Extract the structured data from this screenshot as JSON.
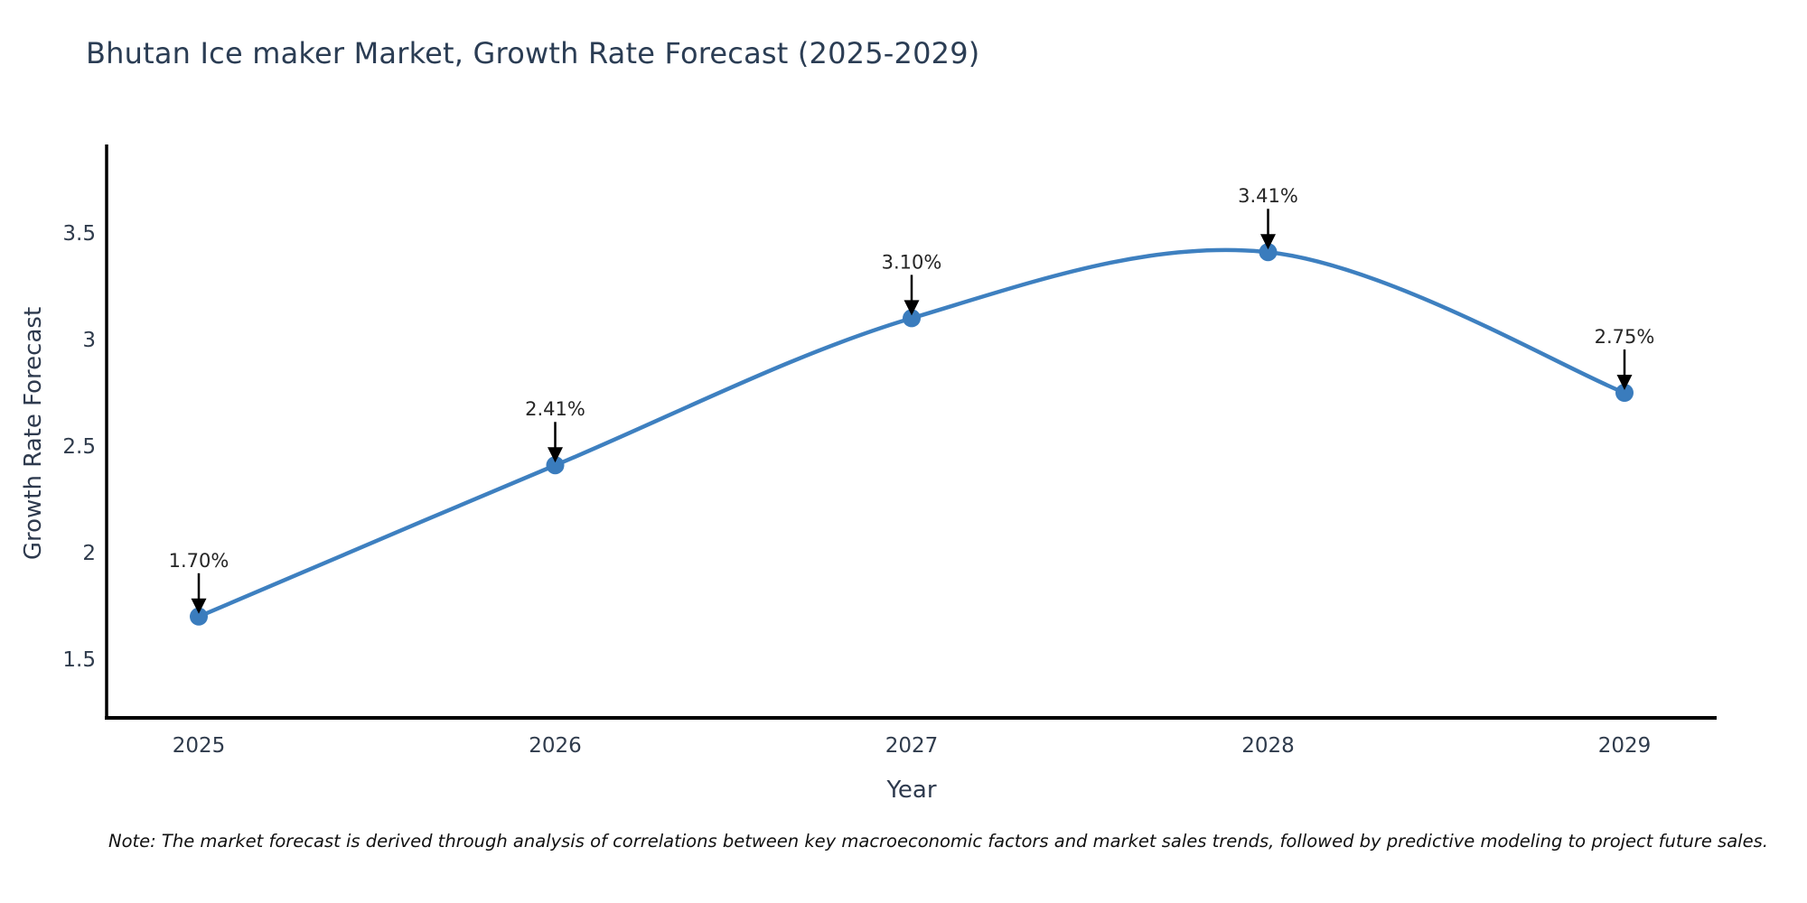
{
  "title": "Bhutan Ice maker Market, Growth Rate Forecast (2025-2029)",
  "note": "Note: The market forecast is derived through analysis of correlations between key macroeconomic factors and market sales trends, followed by predictive modeling to project future sales.",
  "chart_data": {
    "type": "line",
    "title": "Bhutan Ice maker Market, Growth Rate Forecast (2025-2029)",
    "x": [
      "2025",
      "2026",
      "2027",
      "2028",
      "2029"
    ],
    "y": [
      1.7,
      2.41,
      3.1,
      3.41,
      2.75
    ],
    "point_labels": [
      "1.70%",
      "2.41%",
      "3.10%",
      "3.41%",
      "2.75%"
    ],
    "xlabel": "Year",
    "ylabel": "Growth Rate Forecast",
    "yticks": [
      1.5,
      2,
      2.5,
      3,
      3.5
    ],
    "ylim": [
      1.22,
      3.92
    ],
    "grid": false,
    "legend": "none",
    "line_shape": "spline",
    "marker": "circle",
    "colors": {
      "line": "#3e80c0",
      "marker": "#3a7cbd",
      "axis_line": "#000000",
      "tick_text": "#2f3b4c",
      "title_text": "#2b3d54",
      "annotation_text": "#252525",
      "annotation_arrow": "#000000",
      "background": "#ffffff"
    }
  }
}
